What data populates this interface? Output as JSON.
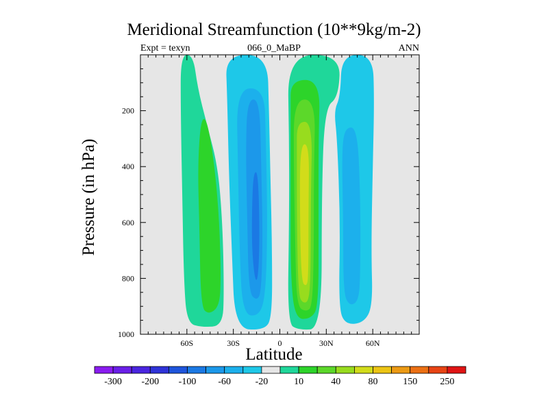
{
  "page": {
    "title": "Meridional Streamfunction (10**9kg/m-2)",
    "subtitle_left": "Expt = texyn",
    "subtitle_center": "066_0_MaBP",
    "subtitle_right": "ANN"
  },
  "chart_data": {
    "type": "heatmap",
    "title": "Meridional Streamfunction (10**9kg/m-2)",
    "xlabel": "Latitude",
    "ylabel": "Pressure (in hPa)",
    "xlim": [
      -90,
      90
    ],
    "ylim": [
      1000,
      0
    ],
    "x_ticks": [
      {
        "value": -60,
        "label": "60S"
      },
      {
        "value": -30,
        "label": "30S"
      },
      {
        "value": 0,
        "label": "0"
      },
      {
        "value": 30,
        "label": "30N"
      },
      {
        "value": 60,
        "label": "60N"
      }
    ],
    "y_ticks": [
      {
        "value": 200,
        "label": "200"
      },
      {
        "value": 400,
        "label": "400"
      },
      {
        "value": 600,
        "label": "600"
      },
      {
        "value": 800,
        "label": "800"
      },
      {
        "value": 1000,
        "label": "1000"
      }
    ],
    "background_color": "#e6e6e6",
    "colorbar": {
      "colors": [
        "#8a1cf0",
        "#6a1fe8",
        "#4a25e0",
        "#2f33d8",
        "#1f55dc",
        "#1b79e4",
        "#1c98ea",
        "#1cb0ec",
        "#1ec8e8",
        "#e6e6e6",
        "#1fd79a",
        "#2dd42a",
        "#5cd82a",
        "#98dc1e",
        "#d2dc1a",
        "#ecc414",
        "#ec9a14",
        "#ec7014",
        "#e84414",
        "#e01414"
      ],
      "labels": [
        "-300",
        "-200",
        "-100",
        "-60",
        "-20",
        "10",
        "40",
        "80",
        "150",
        "250"
      ]
    },
    "cells": [
      {
        "name": "shcell-outer",
        "color": "#1fd79a",
        "points": [
          [
            -64,
            0
          ],
          [
            -56,
            0
          ],
          [
            -53,
            120
          ],
          [
            -47,
            250
          ],
          [
            -40,
            400
          ],
          [
            -37,
            600
          ],
          [
            -36,
            850
          ],
          [
            -37,
            970
          ],
          [
            -50,
            975
          ],
          [
            -60,
            960
          ],
          [
            -62,
            800
          ],
          [
            -63,
            500
          ],
          [
            -64,
            200
          ]
        ]
      },
      {
        "name": "shcell-core",
        "color": "#2dd42a",
        "points": [
          [
            -51,
            230
          ],
          [
            -47,
            230
          ],
          [
            -42,
            400
          ],
          [
            -39,
            600
          ],
          [
            -38,
            800
          ],
          [
            -39,
            900
          ],
          [
            -46,
            930
          ],
          [
            -51,
            900
          ],
          [
            -52,
            600
          ],
          [
            -53,
            400
          ]
        ]
      },
      {
        "name": "sh-neg-outer",
        "color": "#1ec8e8",
        "points": [
          [
            -35,
            0
          ],
          [
            -8,
            0
          ],
          [
            -7,
            200
          ],
          [
            -6,
            450
          ],
          [
            -5,
            700
          ],
          [
            -5,
            940
          ],
          [
            -10,
            985
          ],
          [
            -29,
            980
          ],
          [
            -31,
            700
          ],
          [
            -33,
            400
          ],
          [
            -34,
            150
          ]
        ]
      },
      {
        "name": "sh-neg-2",
        "color": "#1cb0ec",
        "points": [
          [
            -28,
            120
          ],
          [
            -10,
            120
          ],
          [
            -9,
            300
          ],
          [
            -8,
            600
          ],
          [
            -9,
            850
          ],
          [
            -13,
            935
          ],
          [
            -24,
            930
          ],
          [
            -26,
            700
          ],
          [
            -27,
            400
          ]
        ]
      },
      {
        "name": "sh-neg-3",
        "color": "#1c98ea",
        "points": [
          [
            -21,
            160
          ],
          [
            -13,
            160
          ],
          [
            -12,
            400
          ],
          [
            -11,
            650
          ],
          [
            -12,
            850
          ],
          [
            -15,
            880
          ],
          [
            -20,
            850
          ],
          [
            -21,
            600
          ],
          [
            -22,
            350
          ]
        ]
      },
      {
        "name": "sh-neg-4",
        "color": "#1b79e4",
        "points": [
          [
            -17,
            420
          ],
          [
            -14,
            420
          ],
          [
            -13,
            650
          ],
          [
            -14,
            800
          ],
          [
            -16,
            810
          ],
          [
            -18,
            700
          ],
          [
            -18,
            550
          ]
        ]
      },
      {
        "name": "nh-pos-1",
        "color": "#1fd79a",
        "points": [
          [
            5,
            0
          ],
          [
            39,
            0
          ],
          [
            38,
            150
          ],
          [
            29,
            190
          ],
          [
            27,
            500
          ],
          [
            27,
            980
          ],
          [
            12,
            985
          ],
          [
            5,
            960
          ],
          [
            6,
            600
          ],
          [
            6,
            300
          ]
        ]
      },
      {
        "name": "nh-pos-2",
        "color": "#2dd42a",
        "points": [
          [
            7,
            90
          ],
          [
            26,
            90
          ],
          [
            25,
            300
          ],
          [
            25,
            600
          ],
          [
            25,
            900
          ],
          [
            20,
            945
          ],
          [
            10,
            945
          ],
          [
            7,
            800
          ],
          [
            7,
            500
          ],
          [
            7,
            200
          ]
        ]
      },
      {
        "name": "nh-pos-3",
        "color": "#5cd82a",
        "points": [
          [
            9,
            160
          ],
          [
            23,
            160
          ],
          [
            22,
            400
          ],
          [
            22,
            700
          ],
          [
            21,
            900
          ],
          [
            17,
            920
          ],
          [
            11,
            900
          ],
          [
            10,
            700
          ],
          [
            9,
            400
          ]
        ]
      },
      {
        "name": "nh-pos-4",
        "color": "#98dc1e",
        "points": [
          [
            11,
            240
          ],
          [
            21,
            240
          ],
          [
            20,
            500
          ],
          [
            20,
            750
          ],
          [
            19,
            880
          ],
          [
            15,
            890
          ],
          [
            12,
            860
          ],
          [
            11,
            600
          ],
          [
            11,
            350
          ]
        ]
      },
      {
        "name": "nh-pos-5",
        "color": "#d2dc1a",
        "points": [
          [
            13,
            320
          ],
          [
            19,
            320
          ],
          [
            18.5,
            550
          ],
          [
            18.5,
            800
          ],
          [
            17,
            830
          ],
          [
            14,
            810
          ],
          [
            13,
            600
          ]
        ]
      },
      {
        "name": "nh-neg-outer",
        "color": "#1ec8e8",
        "points": [
          [
            40,
            0
          ],
          [
            60,
            0
          ],
          [
            61,
            160
          ],
          [
            60,
            400
          ],
          [
            59,
            700
          ],
          [
            60,
            900
          ],
          [
            54,
            960
          ],
          [
            42,
            965
          ],
          [
            38,
            900
          ],
          [
            39,
            600
          ],
          [
            37,
            300
          ],
          [
            35,
            200
          ],
          [
            39,
            150
          ]
        ]
      },
      {
        "name": "nh-neg-core",
        "color": "#1cb0ec",
        "points": [
          [
            42,
            260
          ],
          [
            50,
            260
          ],
          [
            52,
            500
          ],
          [
            52,
            780
          ],
          [
            51,
            880
          ],
          [
            45,
            900
          ],
          [
            41,
            850
          ],
          [
            41,
            600
          ],
          [
            40,
            350
          ]
        ]
      }
    ]
  }
}
